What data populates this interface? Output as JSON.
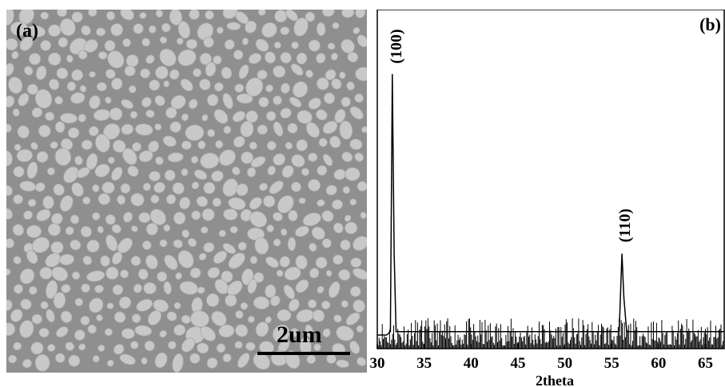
{
  "panel_a": {
    "label": "(a)",
    "scale_bar_text": "2um",
    "colors": {
      "background": "#8f8f8f",
      "particle": "#c8c8c8",
      "scale_bar": "#000000"
    }
  },
  "panel_b": {
    "label": "(b)",
    "peak_labels": [
      "(100)",
      "(110)"
    ]
  },
  "chart_data": {
    "type": "line",
    "title": "",
    "xlabel": "2theta",
    "ylabel": "",
    "xlim": [
      30,
      67
    ],
    "ylim": [
      0,
      100
    ],
    "x_ticks": [
      30,
      35,
      40,
      45,
      50,
      55,
      60,
      65
    ],
    "grid": false,
    "series": [
      {
        "values": [
          {
            "x": 30.0,
            "y": 4
          },
          {
            "x": 31.0,
            "y": 4
          },
          {
            "x": 31.4,
            "y": 5
          },
          {
            "x": 31.6,
            "y": 81
          },
          {
            "x": 31.8,
            "y": 28
          },
          {
            "x": 32.0,
            "y": 5
          },
          {
            "x": 40.0,
            "y": 5
          },
          {
            "x": 50.0,
            "y": 5
          },
          {
            "x": 55.8,
            "y": 5
          },
          {
            "x": 56.1,
            "y": 28
          },
          {
            "x": 56.3,
            "y": 15
          },
          {
            "x": 56.6,
            "y": 5
          },
          {
            "x": 67.0,
            "y": 5
          }
        ]
      }
    ],
    "annotations": [
      {
        "text": "(100)",
        "x": 31.6
      },
      {
        "text": "(110)",
        "x": 56.1
      }
    ]
  }
}
